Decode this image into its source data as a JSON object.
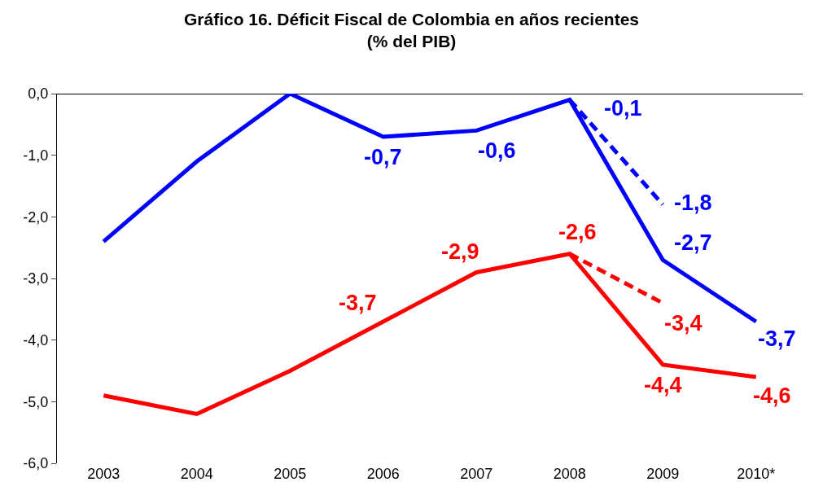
{
  "chart_data": {
    "type": "line",
    "title": "Gráfico 16. Déficit Fiscal de Colombia en años recientes\n(% del PIB)",
    "categories": [
      "2003",
      "2004",
      "2005",
      "2006",
      "2007",
      "2008",
      "2009",
      "2010*"
    ],
    "series": [
      {
        "color": "#0000ff",
        "line_style": "solid",
        "values": [
          -2.4,
          -1.1,
          0.0,
          -0.7,
          -0.6,
          -0.1,
          -2.7,
          -3.7
        ],
        "value_labels": [
          null,
          null,
          null,
          "-0,7",
          "-0,6",
          "-0,1",
          "-2,7",
          "-3,7"
        ]
      },
      {
        "color": "#0000ff",
        "line_style": "dashed",
        "values": [
          null,
          null,
          null,
          null,
          null,
          -0.1,
          -1.8,
          null
        ],
        "value_labels": [
          null,
          null,
          null,
          null,
          null,
          null,
          "-1,8",
          null
        ]
      },
      {
        "color": "#ff0000",
        "line_style": "solid",
        "values": [
          -4.9,
          -5.2,
          -4.5,
          -3.7,
          -2.9,
          -2.6,
          -4.4,
          -4.6
        ],
        "value_labels": [
          null,
          null,
          null,
          "-3,7",
          "-2,9",
          "-2,6",
          "-4,4",
          "-4,6"
        ]
      },
      {
        "color": "#ff0000",
        "line_style": "dashed",
        "values": [
          null,
          null,
          null,
          null,
          null,
          -2.6,
          -3.4,
          null
        ],
        "value_labels": [
          null,
          null,
          null,
          null,
          null,
          null,
          "-3,4",
          null
        ]
      }
    ],
    "ylim": [
      -6,
      0
    ],
    "yticks": [
      {
        "value": 0,
        "label": "0,0"
      },
      {
        "value": -1,
        "label": "-1,0"
      },
      {
        "value": -2,
        "label": "-2,0"
      },
      {
        "value": -3,
        "label": "-3,0"
      },
      {
        "value": -4,
        "label": "-4,0"
      },
      {
        "value": -5,
        "label": "-5,0"
      },
      {
        "value": -6,
        "label": "-6,0"
      }
    ],
    "grid": false
  }
}
